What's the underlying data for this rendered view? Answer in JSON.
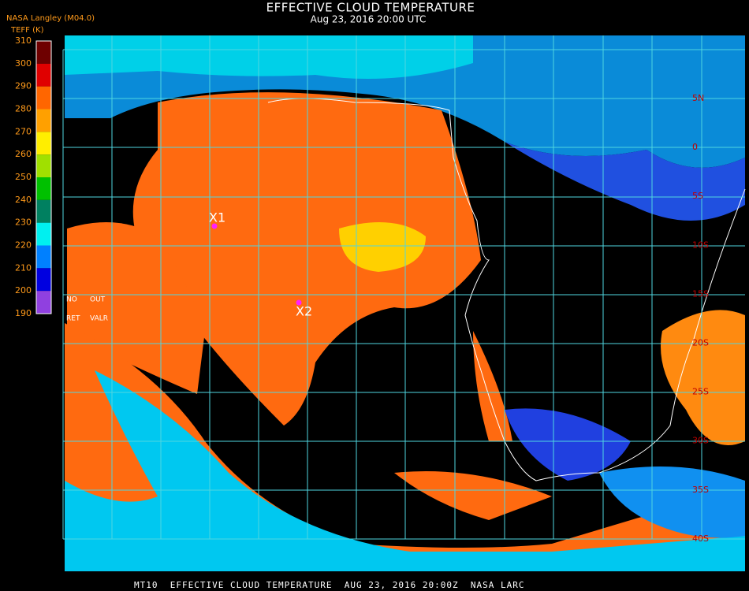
{
  "header": {
    "title": "EFFECTIVE CLOUD TEMPERATURE",
    "subtitle": "Aug 23, 2016 20:00 UTC",
    "source": "NASA Langley (M04.0)"
  },
  "legend": {
    "title": "TEFF (K)",
    "ticks": [
      310,
      300,
      290,
      280,
      270,
      260,
      250,
      240,
      230,
      220,
      210,
      200,
      190
    ],
    "colors": [
      "#6e0000",
      "#e00000",
      "#ff6600",
      "#ffa000",
      "#ffee00",
      "#a0e000",
      "#00c000",
      "#008060",
      "#00f0f0",
      "#0080ff",
      "#0000e0",
      "#9040e0"
    ],
    "notes": [
      "NO",
      "OUT",
      "RET",
      "VALR"
    ]
  },
  "map": {
    "markers": [
      {
        "label": "X1"
      },
      {
        "label": "X2"
      }
    ],
    "latitude_labels": [
      "5N",
      "0",
      "5S",
      "10S",
      "15S",
      "20S",
      "25S",
      "30S",
      "35S",
      "40S"
    ]
  },
  "footer": "MT10  EFFECTIVE CLOUD TEMPERATURE  AUG 23, 2016 20:00Z  NASA LARC"
}
